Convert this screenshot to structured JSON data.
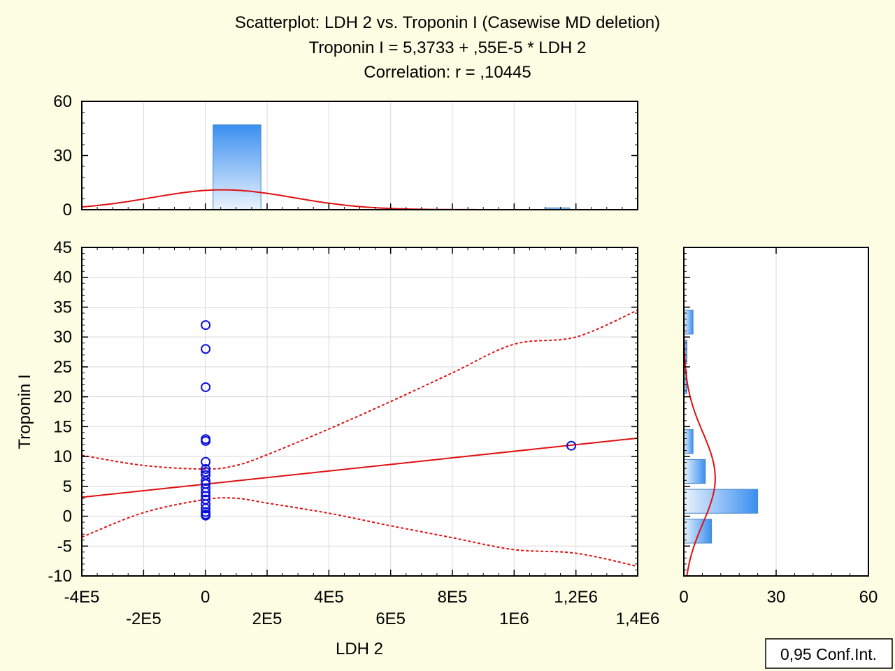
{
  "chart_data": {
    "type": "scatter",
    "title": "Scatterplot: LDH 2 vs. Troponin I (Casewise MD deletion)",
    "subtitle_equation": "Troponin I = 5,3733 + ,55E-5 * LDH 2",
    "subtitle_correlation": "Correlation: r = ,10445",
    "xlabel": "LDH 2",
    "ylabel": "Troponin I",
    "legend": "0,95 Conf.Int.",
    "legend_position": "bottom-right",
    "xlim": [
      -400000,
      1400000
    ],
    "ylim": [
      -10,
      45
    ],
    "grid": true,
    "x_ticks_upper": [
      {
        "value": -400000,
        "label": "-4E5"
      },
      {
        "value": 0,
        "label": "0"
      },
      {
        "value": 400000,
        "label": "4E5"
      },
      {
        "value": 800000,
        "label": "8E5"
      },
      {
        "value": 1200000,
        "label": "1,2E6"
      }
    ],
    "x_ticks_lower": [
      {
        "value": -200000,
        "label": "-2E5"
      },
      {
        "value": 200000,
        "label": "2E5"
      },
      {
        "value": 600000,
        "label": "6E5"
      },
      {
        "value": 1000000,
        "label": "1E6"
      },
      {
        "value": 1400000,
        "label": "1,4E6"
      }
    ],
    "y_ticks": [
      {
        "value": 45,
        "label": "45"
      },
      {
        "value": 40,
        "label": "40"
      },
      {
        "value": 35,
        "label": "35"
      },
      {
        "value": 30,
        "label": "30"
      },
      {
        "value": 25,
        "label": "25"
      },
      {
        "value": 20,
        "label": "20"
      },
      {
        "value": 15,
        "label": "15"
      },
      {
        "value": 10,
        "label": "10"
      },
      {
        "value": 5,
        "label": "5"
      },
      {
        "value": 0,
        "label": "0"
      },
      {
        "value": -5,
        "label": "-5"
      },
      {
        "value": -10,
        "label": "-10"
      }
    ],
    "points": [
      {
        "x": 1000,
        "y": 32.0
      },
      {
        "x": 1000,
        "y": 28.0
      },
      {
        "x": 1000,
        "y": 21.6
      },
      {
        "x": 1000,
        "y": 12.9
      },
      {
        "x": 1000,
        "y": 12.6
      },
      {
        "x": 1000,
        "y": 9.1
      },
      {
        "x": 1000,
        "y": 7.9
      },
      {
        "x": 1000,
        "y": 7.4
      },
      {
        "x": 1000,
        "y": 6.9
      },
      {
        "x": 1000,
        "y": 5.9
      },
      {
        "x": 1000,
        "y": 5.4
      },
      {
        "x": 1000,
        "y": 4.7
      },
      {
        "x": 1000,
        "y": 4.0
      },
      {
        "x": 1000,
        "y": 3.4
      },
      {
        "x": 1000,
        "y": 2.8
      },
      {
        "x": 1000,
        "y": 2.0
      },
      {
        "x": 1000,
        "y": 1.3
      },
      {
        "x": 1000,
        "y": 0.7
      },
      {
        "x": 1000,
        "y": 0.3
      },
      {
        "x": 1000,
        "y": 0.1
      },
      {
        "x": 1185000,
        "y": 11.8
      }
    ],
    "regression": {
      "intercept": 5.3733,
      "slope": 5.5e-06
    },
    "conf_band_upper": [
      [
        -400000,
        10.2
      ],
      [
        -200000,
        8.5
      ],
      [
        0,
        7.9
      ],
      [
        100000,
        8.5
      ],
      [
        200000,
        10.3
      ],
      [
        400000,
        14.6
      ],
      [
        600000,
        19.2
      ],
      [
        800000,
        24.0
      ],
      [
        1000000,
        28.8
      ],
      [
        1200000,
        30.0
      ],
      [
        1400000,
        34.5
      ]
    ],
    "conf_band_lower": [
      [
        -400000,
        -3.5
      ],
      [
        -200000,
        0.6
      ],
      [
        0,
        2.8
      ],
      [
        100000,
        3.0
      ],
      [
        200000,
        2.2
      ],
      [
        400000,
        0.5
      ],
      [
        600000,
        -1.6
      ],
      [
        800000,
        -3.6
      ],
      [
        1000000,
        -5.6
      ],
      [
        1200000,
        -6.2
      ],
      [
        1400000,
        -8.4
      ]
    ],
    "top_histogram": {
      "ylim": [
        0,
        60
      ],
      "y_ticks": [
        {
          "value": 60,
          "label": "60"
        },
        {
          "value": 30,
          "label": "30"
        },
        {
          "value": 0,
          "label": "0"
        }
      ],
      "bins": [
        {
          "x0": 25000,
          "x1": 180000,
          "count": 47
        },
        {
          "x0": 1100000,
          "x1": 1180000,
          "count": 1
        }
      ],
      "normal_curve": {
        "mean": 56000,
        "sd": 230000,
        "peak": 11
      }
    },
    "right_histogram": {
      "xlim": [
        0,
        60
      ],
      "x_ticks": [
        {
          "value": 0,
          "label": "0"
        },
        {
          "value": 30,
          "label": "30"
        },
        {
          "value": 60,
          "label": "60"
        }
      ],
      "bins": [
        {
          "y0": -4.5,
          "y1": -0.5,
          "count": 9
        },
        {
          "y0": 0.5,
          "y1": 4.5,
          "count": 24
        },
        {
          "y0": 5.5,
          "y1": 9.5,
          "count": 7
        },
        {
          "y0": 10.5,
          "y1": 14.5,
          "count": 3
        },
        {
          "y0": 20.5,
          "y1": 24.5,
          "count": 1
        },
        {
          "y0": 25.5,
          "y1": 29.5,
          "count": 1
        },
        {
          "y0": 30.5,
          "y1": 34.5,
          "count": 3
        }
      ],
      "normal_curve": {
        "mean": 6.4,
        "sd": 7.6,
        "peak": 10.2
      }
    }
  },
  "colors": {
    "background": "#fdfde3",
    "plot_background": "#ffffff",
    "grid": "#d9d9d9",
    "points": "#0a10d8",
    "regression": "#e01010",
    "bar_top": "#3a8ff0",
    "bar_bottom": "#e8f2fd",
    "bar_stroke": "#4a86c8"
  }
}
